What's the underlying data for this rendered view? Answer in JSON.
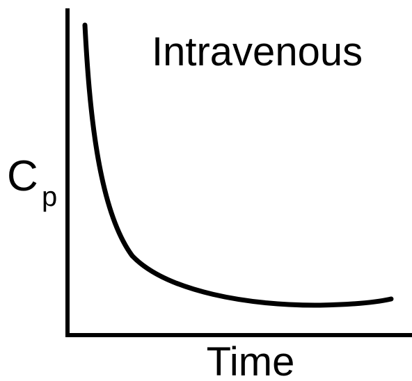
{
  "title": "Intravenous",
  "y_axis": {
    "label": "C",
    "subscript": "p"
  },
  "x_axis": {
    "label": "Time"
  }
}
